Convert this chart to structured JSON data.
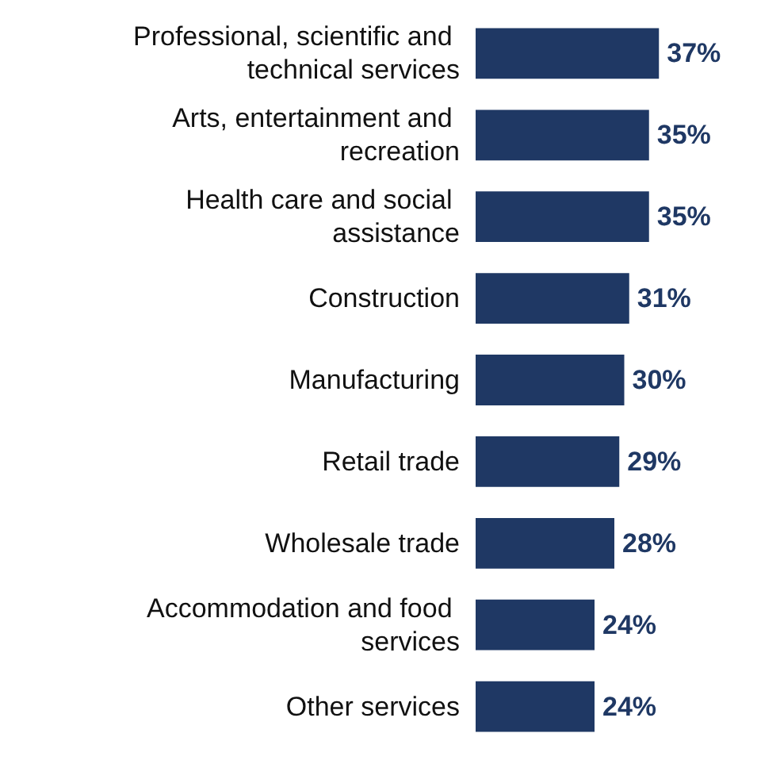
{
  "chart_data": {
    "type": "bar",
    "orientation": "horizontal",
    "categories": [
      "Professional, scientific and technical services",
      "Arts, entertainment and recreation",
      "Health care and social assistance",
      "Construction",
      "Manufacturing",
      "Retail trade",
      "Wholesale trade",
      "Accommodation and food services",
      "Other services"
    ],
    "values": [
      37,
      35,
      35,
      31,
      30,
      29,
      28,
      24,
      24
    ],
    "value_labels": [
      "37%",
      "35%",
      "35%",
      "31%",
      "30%",
      "29%",
      "28%",
      "24%",
      "24%"
    ],
    "color": "#1f3864"
  }
}
